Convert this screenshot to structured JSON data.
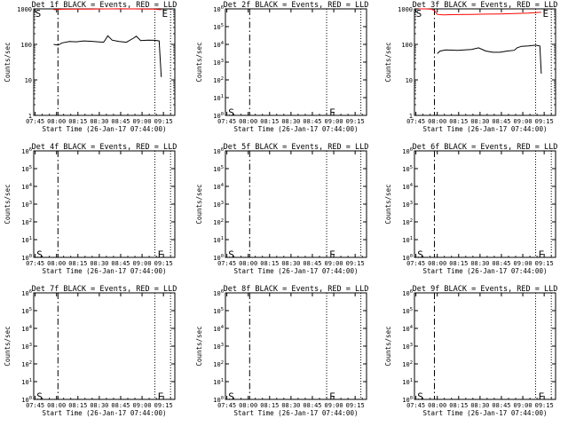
{
  "figure": {
    "xlabel": "Start Time (26-Jan-17 07:44:00)",
    "ylabel": "Counts/sec",
    "x_ticks": [
      "07:45",
      "08:00",
      "08:15",
      "08:30",
      "08:45",
      "09:00",
      "09:15"
    ],
    "colors": {
      "events": "#000000",
      "lld": "#ff0000",
      "background": "#ffffff",
      "axes": "#000000"
    }
  },
  "chart_data": [
    {
      "type": "line",
      "title": "Det 1f BLACK = Events, RED = LLD",
      "x_unit": "minutes after 07:44:00",
      "xlim": [
        0,
        99
      ],
      "yscale": "log",
      "ylim": [
        1,
        1000
      ],
      "y_ticks": [
        "1",
        "10",
        "100",
        "1000"
      ],
      "vlines": {
        "dash_dot_min": 17,
        "dotted_min": [
          85,
          96
        ]
      },
      "markers": [
        {
          "text": "S",
          "x_min": 1
        },
        {
          "text": "E",
          "x_min": 90
        }
      ],
      "series": [
        {
          "name": "Events",
          "color": "#000000",
          "x": [
            14,
            17,
            20,
            25,
            30,
            35,
            40,
            45,
            49,
            50,
            52,
            55,
            60,
            65,
            70,
            72,
            75,
            80,
            85,
            88,
            89.5
          ],
          "values": [
            100,
            95,
            110,
            120,
            118,
            125,
            122,
            118,
            115,
            130,
            175,
            132,
            120,
            115,
            150,
            170,
            128,
            132,
            130,
            125,
            12
          ]
        },
        {
          "name": "LLD",
          "color": "#ff0000",
          "x": [
            14,
            20,
            30,
            40,
            50,
            60,
            70,
            80,
            85,
            88,
            89.5
          ],
          "values": [
            950,
            980,
            990,
            990,
            1000,
            1005,
            1000,
            990,
            985,
            960,
            950
          ]
        }
      ]
    },
    {
      "type": "line",
      "title": "Det 2f BLACK = Events, RED = LLD",
      "x_unit": "minutes after 07:44:00",
      "xlim": [
        0,
        99
      ],
      "yscale": "log",
      "ylim": [
        1,
        1000000
      ],
      "y_ticks": [
        "10^0",
        "10^1",
        "10^2",
        "10^3",
        "10^4",
        "10^5",
        "10^6"
      ],
      "vlines": {
        "dash_dot_min": 17,
        "dotted_min": [
          71,
          95
        ]
      },
      "markers": [
        {
          "text": "S",
          "x_min": 2,
          "y": 1.5
        },
        {
          "text": "E",
          "x_min": 73,
          "y": 1.5
        }
      ],
      "series": []
    },
    {
      "type": "line",
      "title": "Det 3f BLACK = Events, RED = LLD",
      "x_unit": "minutes after 07:44:00",
      "xlim": [
        0,
        99
      ],
      "yscale": "log",
      "ylim": [
        1,
        1000
      ],
      "y_ticks": [
        "1",
        "10",
        "100",
        "1000"
      ],
      "vlines": {
        "dash_dot_min": 14,
        "dotted_min": [
          85,
          96
        ]
      },
      "markers": [
        {
          "text": "S",
          "x_min": 1
        },
        {
          "text": "E",
          "x_min": 90
        }
      ],
      "series": [
        {
          "name": "Events",
          "color": "#000000",
          "x": [
            16,
            18,
            22,
            30,
            40,
            45,
            50,
            55,
            60,
            65,
            70,
            72,
            75,
            80,
            85,
            88,
            89
          ],
          "values": [
            55,
            65,
            70,
            68,
            72,
            80,
            65,
            60,
            60,
            65,
            68,
            80,
            88,
            90,
            95,
            90,
            15
          ]
        },
        {
          "name": "LLD",
          "color": "#ff0000",
          "x": [
            3,
            8,
            12,
            14,
            16,
            20,
            30,
            40,
            50,
            60,
            70,
            80,
            85,
            88,
            89
          ],
          "values": [
            1000,
            1000,
            980,
            900,
            700,
            680,
            690,
            700,
            710,
            720,
            740,
            760,
            780,
            800,
            810
          ]
        }
      ]
    },
    {
      "type": "line",
      "title": "Det 4f BLACK = Events, RED = LLD",
      "x_unit": "minutes after 07:44:00",
      "xlim": [
        0,
        99
      ],
      "yscale": "log",
      "ylim": [
        1,
        1000000
      ],
      "y_ticks": [
        "10^0",
        "10^1",
        "10^2",
        "10^3",
        "10^4",
        "10^5",
        "10^6"
      ],
      "vlines": {
        "dash_dot_min": 17,
        "dotted_min": [
          85,
          96
        ]
      },
      "markers": [
        {
          "text": "S",
          "x_min": 2,
          "y": 1.5
        },
        {
          "text": "E",
          "x_min": 87,
          "y": 1.5
        }
      ],
      "series": []
    },
    {
      "type": "line",
      "title": "Det 5f BLACK = Events, RED = LLD",
      "x_unit": "minutes after 07:44:00",
      "xlim": [
        0,
        99
      ],
      "yscale": "log",
      "ylim": [
        1,
        1000000
      ],
      "y_ticks": [
        "10^0",
        "10^1",
        "10^2",
        "10^3",
        "10^4",
        "10^5",
        "10^6"
      ],
      "vlines": {
        "dash_dot_min": 17,
        "dotted_min": [
          71,
          95
        ]
      },
      "markers": [
        {
          "text": "S",
          "x_min": 2,
          "y": 1.5
        },
        {
          "text": "E",
          "x_min": 73,
          "y": 1.5
        }
      ],
      "series": []
    },
    {
      "type": "line",
      "title": "Det 6f BLACK = Events, RED = LLD",
      "x_unit": "minutes after 07:44:00",
      "xlim": [
        0,
        99
      ],
      "yscale": "log",
      "ylim": [
        1,
        1000000
      ],
      "y_ticks": [
        "10^0",
        "10^1",
        "10^2",
        "10^3",
        "10^4",
        "10^5",
        "10^6"
      ],
      "vlines": {
        "dash_dot_min": 14,
        "dotted_min": [
          85,
          96
        ]
      },
      "markers": [
        {
          "text": "S",
          "x_min": 2,
          "y": 1.5
        },
        {
          "text": "E",
          "x_min": 87,
          "y": 1.5
        }
      ],
      "series": []
    },
    {
      "type": "line",
      "title": "Det 7f BLACK = Events, RED = LLD",
      "x_unit": "minutes after 07:44:00",
      "xlim": [
        0,
        99
      ],
      "yscale": "log",
      "ylim": [
        1,
        1000000
      ],
      "y_ticks": [
        "10^0",
        "10^1",
        "10^2",
        "10^3",
        "10^4",
        "10^5",
        "10^6"
      ],
      "vlines": {
        "dash_dot_min": 17,
        "dotted_min": [
          85,
          96
        ]
      },
      "markers": [
        {
          "text": "S",
          "x_min": 2,
          "y": 1.5
        },
        {
          "text": "E",
          "x_min": 87,
          "y": 1.5
        }
      ],
      "series": []
    },
    {
      "type": "line",
      "title": "Det 8f BLACK = Events, RED = LLD",
      "x_unit": "minutes after 07:44:00",
      "xlim": [
        0,
        99
      ],
      "yscale": "log",
      "ylim": [
        1,
        1000000
      ],
      "y_ticks": [
        "10^0",
        "10^1",
        "10^2",
        "10^3",
        "10^4",
        "10^5",
        "10^6"
      ],
      "vlines": {
        "dash_dot_min": 17,
        "dotted_min": [
          71,
          95
        ]
      },
      "markers": [
        {
          "text": "S",
          "x_min": 2,
          "y": 1.5
        },
        {
          "text": "E",
          "x_min": 73,
          "y": 1.5
        }
      ],
      "series": []
    },
    {
      "type": "line",
      "title": "Det 9f BLACK = Events, RED = LLD",
      "x_unit": "minutes after 07:44:00",
      "xlim": [
        0,
        99
      ],
      "yscale": "log",
      "ylim": [
        1,
        1000000
      ],
      "y_ticks": [
        "10^0",
        "10^1",
        "10^2",
        "10^3",
        "10^4",
        "10^5",
        "10^6"
      ],
      "vlines": {
        "dash_dot_min": 14,
        "dotted_min": [
          85,
          96
        ]
      },
      "markers": [
        {
          "text": "S",
          "x_min": 2,
          "y": 1.5
        },
        {
          "text": "E",
          "x_min": 87,
          "y": 1.5
        }
      ],
      "series": []
    }
  ]
}
